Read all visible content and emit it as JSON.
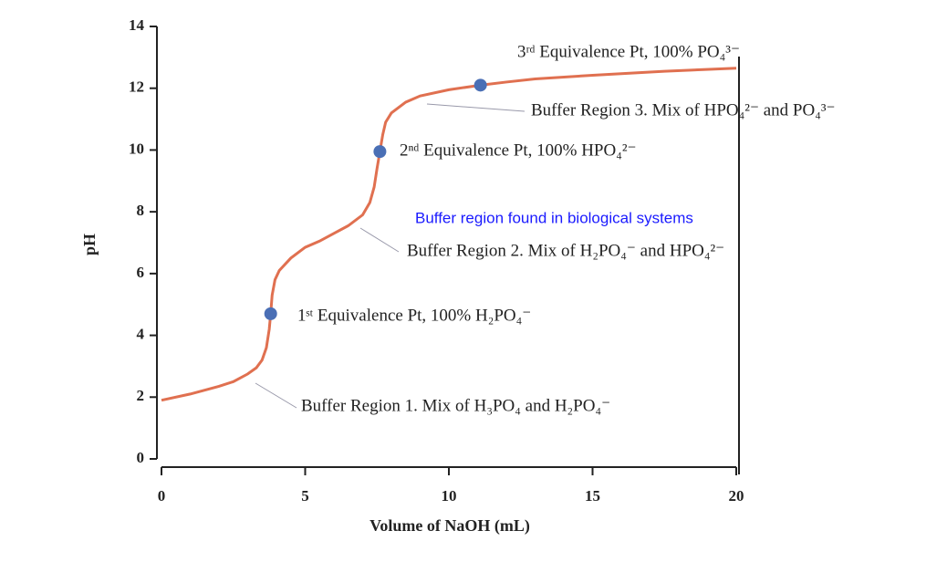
{
  "chart_data": {
    "type": "line",
    "x_label": "Volume of NaOH (mL)",
    "y_label": "pH",
    "x": [
      0,
      1,
      2,
      2.5,
      3,
      3.3,
      3.5,
      3.65,
      3.75,
      3.8,
      3.85,
      3.95,
      4.1,
      4.5,
      5,
      5.5,
      6,
      6.5,
      7,
      7.25,
      7.4,
      7.5,
      7.6,
      7.7,
      7.8,
      8,
      8.5,
      9,
      10,
      11.1,
      12,
      13,
      15,
      17.5,
      20
    ],
    "values": [
      1.9,
      2.1,
      2.35,
      2.5,
      2.75,
      2.95,
      3.2,
      3.6,
      4.2,
      4.7,
      5.3,
      5.8,
      6.1,
      6.5,
      6.85,
      7.05,
      7.3,
      7.55,
      7.9,
      8.3,
      8.8,
      9.4,
      9.95,
      10.5,
      10.9,
      11.2,
      11.55,
      11.75,
      11.95,
      12.1,
      12.2,
      12.3,
      12.42,
      12.55,
      12.65
    ],
    "color": "#e07050",
    "points": {
      "x": [
        3.8,
        7.6,
        11.1
      ],
      "values": [
        4.7,
        9.95,
        12.1
      ],
      "color": "#4a6fb5"
    },
    "xlim": [
      0,
      20
    ],
    "xticks": [
      0,
      5,
      10,
      15,
      20
    ],
    "ylim": [
      0,
      14
    ],
    "yticks": [
      0,
      2,
      4,
      6,
      8,
      10,
      12,
      14
    ],
    "annotations": [
      "3ʳᵈ Equivalence Pt, 100% PO₄³⁻",
      "Buffer Region 3. Mix of HPO₄²⁻ and PO₄³⁻",
      "2ⁿᵈ Equivalence Pt, 100% HPO₄²⁻",
      "Buffer region found in biological systems",
      "Buffer Region 2. Mix of H₂PO₄⁻ and HPO₄²⁻",
      "1ˢᵗ Equivalence Pt, 100% H₂PO₄⁻",
      "Buffer Region 1. Mix of H₃PO₄ and H₂PO₄⁻"
    ]
  }
}
